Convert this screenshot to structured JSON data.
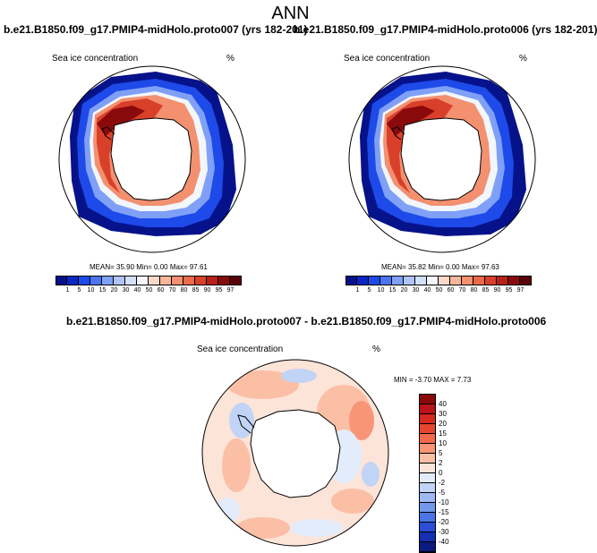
{
  "title": "ANN",
  "panels": [
    {
      "case_title": "b.e21.B1850.f09_g17.PMIP4-midHolo.proto007 (yrs 182-201)",
      "variable": "Sea ice concentration",
      "units": "%",
      "stats": "MEAN=   35.90  Min=    0.00  Max=   97.61"
    },
    {
      "case_title": "b.e21.B1850.f09_g17.PMIP4-midHolo.proto006 (yrs 182-201)",
      "variable": "Sea ice concentration",
      "units": "%",
      "stats": "MEAN=   35.82  Min=    0.00  Max=   97.63"
    }
  ],
  "colorbar": {
    "labels": [
      "1",
      "5",
      "10",
      "15",
      "20",
      "30",
      "40",
      "50",
      "60",
      "70",
      "80",
      "85",
      "90",
      "95",
      "97"
    ],
    "colors": [
      "#05128a",
      "#0a27c4",
      "#1d4ae8",
      "#4a74f2",
      "#7fa0f6",
      "#aec4f8",
      "#d3e0fa",
      "#f3f6fb",
      "#fbd8c8",
      "#f8b79a",
      "#f29070",
      "#ea6a4a",
      "#d9402a",
      "#b8201a",
      "#8a0a0c",
      "#5a0208"
    ]
  },
  "diff": {
    "title": "b.e21.B1850.f09_g17.PMIP4-midHolo.proto007 - b.e21.B1850.f09_g17.PMIP4-midHolo.proto006",
    "variable": "Sea ice concentration",
    "units": "%",
    "stats": "MIN =  -3.70 MAX =   7.73",
    "colorbar": {
      "labels": [
        "40",
        "30",
        "20",
        "15",
        "10",
        "5",
        "2",
        "0",
        "-2",
        "-5",
        "-10",
        "-15",
        "-20",
        "-30",
        "-40"
      ],
      "colors": [
        "#8a0a0c",
        "#b8141a",
        "#d6281f",
        "#e8452e",
        "#f26a4c",
        "#f79576",
        "#fbbfa6",
        "#fde4d8",
        "#e3ecfa",
        "#c2d4f6",
        "#9fb9f2",
        "#7498ec",
        "#4b74e4",
        "#2a4ed8",
        "#1530b0",
        "#0a1a80"
      ]
    }
  }
}
